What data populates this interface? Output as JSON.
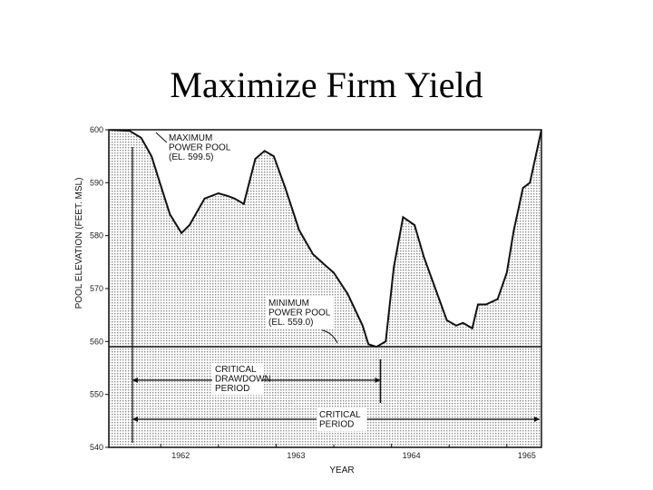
{
  "slide": {
    "title": "Maximize Firm Yield"
  },
  "chart_data": {
    "type": "area",
    "xlabel": "YEAR",
    "ylabel": "POOL ELEVATION (FEET. MSL)",
    "ylim": [
      540,
      600
    ],
    "yticks": [
      "540",
      "550",
      "560",
      "570",
      "580",
      "590",
      "600"
    ],
    "xticks": [
      {
        "label": "1962",
        "x": 1962.0
      },
      {
        "label": "1963",
        "x": 1963.0
      },
      {
        "label": "1964",
        "x": 1964.0
      },
      {
        "label": "1965",
        "x": 1965.0
      }
    ],
    "xlim": [
      1961.55,
      1965.3
    ],
    "grid": false,
    "x": [
      1961.55,
      1961.73,
      1961.83,
      1961.92,
      1962.0,
      1962.08,
      1962.18,
      1962.25,
      1962.38,
      1962.5,
      1962.58,
      1962.64,
      1962.72,
      1962.82,
      1962.9,
      1962.98,
      1963.08,
      1963.2,
      1963.32,
      1963.42,
      1963.5,
      1963.62,
      1963.75,
      1963.8,
      1963.87,
      1963.95,
      1964.02,
      1964.1,
      1964.2,
      1964.28,
      1964.38,
      1964.48,
      1964.56,
      1964.62,
      1964.7,
      1964.75,
      1964.82,
      1964.92,
      1965.0,
      1965.06,
      1965.1,
      1965.14,
      1965.2,
      1965.3
    ],
    "values": [
      600.0,
      599.8,
      598.5,
      595.0,
      589.5,
      584.0,
      580.5,
      582.0,
      587.0,
      588.0,
      587.5,
      587.0,
      586.0,
      594.5,
      596.0,
      595.0,
      589.0,
      581.0,
      576.5,
      574.5,
      573.0,
      569.0,
      563.0,
      559.5,
      559.0,
      560.0,
      574.0,
      583.5,
      582.0,
      576.0,
      570.0,
      564.0,
      563.0,
      563.5,
      562.5,
      567.0,
      567.0,
      568.0,
      573.0,
      581.0,
      585.0,
      589.0,
      590.0,
      600.0
    ],
    "annotations": [
      {
        "lines": [
          "MAXIMUM",
          "POWER POOL",
          "(EL. 599.5)"
        ]
      },
      {
        "lines": [
          "MINIMUM",
          "POWER POOL",
          "(EL. 559.0)"
        ]
      },
      {
        "lines": [
          "CRITICAL",
          "DRAWDOWN",
          "PERIOD"
        ]
      },
      {
        "lines": [
          "CRITICAL",
          "PERIOD"
        ]
      }
    ],
    "min_power_pool": 559.0,
    "max_power_pool": 599.5,
    "critical_drawdown_period": [
      1961.55,
      1963.92
    ],
    "critical_period": [
      1961.55,
      1965.3
    ]
  }
}
